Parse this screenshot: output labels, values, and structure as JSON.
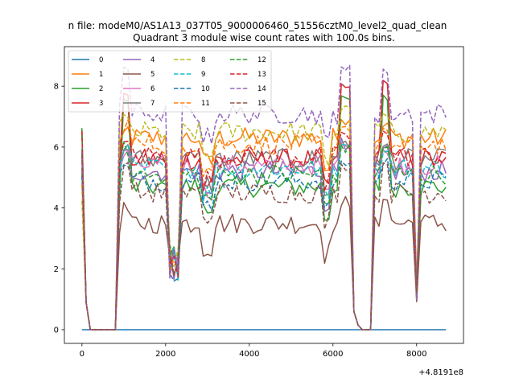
{
  "chart_data": {
    "type": "line",
    "suptitle": "n file: modeM0/AS1A13_037T05_9000006460_51556cztM0_level2_quad_clean",
    "title": "Quadrant 3 module wise count rates with 100.0s bins.",
    "xlabel": "",
    "ylabel": "",
    "x_offset_label": "+4.8191e8",
    "xlim": [
      -420,
      9120
    ],
    "ylim": [
      -0.45,
      9.3
    ],
    "x_ticks": [
      0,
      2000,
      4000,
      6000,
      8000
    ],
    "y_ticks": [
      0,
      2,
      4,
      6,
      8
    ],
    "grid": false,
    "legend_placement": "top-left",
    "legend_columns": 4,
    "series": [
      {
        "name": "0",
        "color": "#1f77b4",
        "style": "solid",
        "base": 0.0,
        "peak": 0.0
      },
      {
        "name": "1",
        "color": "#ff7f0e",
        "style": "solid",
        "base": 6.3,
        "peak": 7.0
      },
      {
        "name": "2",
        "color": "#2ca02c",
        "style": "solid",
        "base": 4.7,
        "peak": 7.9
      },
      {
        "name": "3",
        "color": "#d62728",
        "style": "solid",
        "base": 5.6,
        "peak": 8.2
      },
      {
        "name": "4",
        "color": "#9467bd",
        "style": "solid",
        "base": 5.2,
        "peak": 6.3
      },
      {
        "name": "5",
        "color": "#8c564b",
        "style": "solid",
        "base": 3.5,
        "peak": 4.4
      },
      {
        "name": "6",
        "color": "#e377c2",
        "style": "solid",
        "base": 5.4,
        "peak": 6.1
      },
      {
        "name": "7",
        "color": "#7f7f7f",
        "style": "solid",
        "base": 5.6,
        "peak": 6.3
      },
      {
        "name": "8",
        "color": "#bcbd22",
        "style": "dashed",
        "base": 6.5,
        "peak": 7.4
      },
      {
        "name": "9",
        "color": "#17becf",
        "style": "dashed",
        "base": 5.3,
        "peak": 6.1
      },
      {
        "name": "10",
        "color": "#1f77b4",
        "style": "dashed",
        "base": 4.9,
        "peak": 5.7
      },
      {
        "name": "11",
        "color": "#ff7f0e",
        "style": "dashed",
        "base": 6.1,
        "peak": 6.9
      },
      {
        "name": "12",
        "color": "#2ca02c",
        "style": "dashed",
        "base": 5.1,
        "peak": 6.2
      },
      {
        "name": "13",
        "color": "#d62728",
        "style": "dashed",
        "base": 5.7,
        "peak": 6.6
      },
      {
        "name": "14",
        "color": "#9467bd",
        "style": "dashed",
        "base": 7.1,
        "peak": 8.8
      },
      {
        "name": "15",
        "color": "#8c564b",
        "style": "dashed",
        "base": 4.5,
        "peak": 5.5
      }
    ]
  }
}
